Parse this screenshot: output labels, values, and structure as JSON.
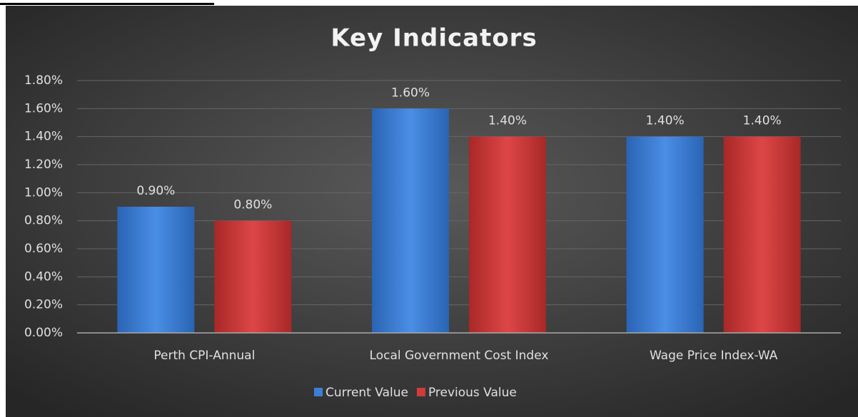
{
  "chart_data": {
    "type": "bar",
    "title": "Key Indicators",
    "categories": [
      "Perth CPI-Annual",
      "Local Government Cost Index",
      "Wage Price Index-WA"
    ],
    "series": [
      {
        "name": "Current Value",
        "color": "#3c7fd6",
        "values": [
          0.9,
          1.6,
          1.4
        ],
        "value_labels": [
          "0.90%",
          "1.60%",
          "1.40%"
        ]
      },
      {
        "name": "Previous Value",
        "color": "#d03a3a",
        "values": [
          0.8,
          1.4,
          1.4
        ],
        "value_labels": [
          "0.80%",
          "1.40%",
          "1.40%"
        ]
      }
    ],
    "ylim": [
      0,
      1.8
    ],
    "yticks": [
      {
        "value": 0,
        "label": "0.00%"
      },
      {
        "value": 0.2,
        "label": "0.20%"
      },
      {
        "value": 0.4,
        "label": "0.40%"
      },
      {
        "value": 0.6,
        "label": "0.60%"
      },
      {
        "value": 0.8,
        "label": "0.80%"
      },
      {
        "value": 1.0,
        "label": "1.00%"
      },
      {
        "value": 1.2,
        "label": "1.20%"
      },
      {
        "value": 1.4,
        "label": "1.40%"
      },
      {
        "value": 1.6,
        "label": "1.60%"
      },
      {
        "value": 1.8,
        "label": "1.80%"
      }
    ],
    "grid": true,
    "legend": "bottom"
  }
}
